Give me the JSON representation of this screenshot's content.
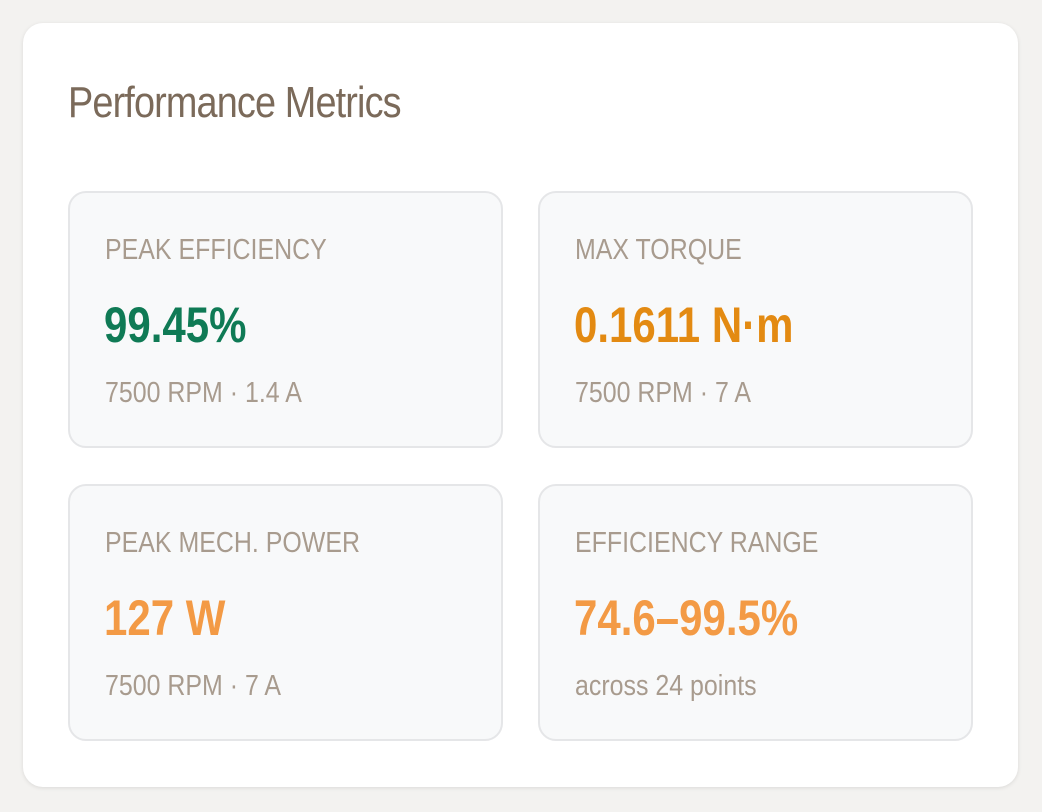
{
  "title": "Performance Metrics",
  "metrics": [
    {
      "label": "PEAK EFFICIENCY",
      "value": "99.45%",
      "sub": "7500 RPM · 1.4 A",
      "color": "#0f7a55"
    },
    {
      "label": "MAX TORQUE",
      "value": "0.1611 N·m",
      "sub": "7500 RPM · 7 A",
      "color": "#e38a12"
    },
    {
      "label": "PEAK MECH. POWER",
      "value": "127 W",
      "sub": "7500 RPM · 7 A",
      "color": "#f39a45"
    },
    {
      "label": "EFFICIENCY RANGE",
      "value": "74.6–99.5%",
      "sub": "across 24 points",
      "color": "#f39a45"
    }
  ]
}
